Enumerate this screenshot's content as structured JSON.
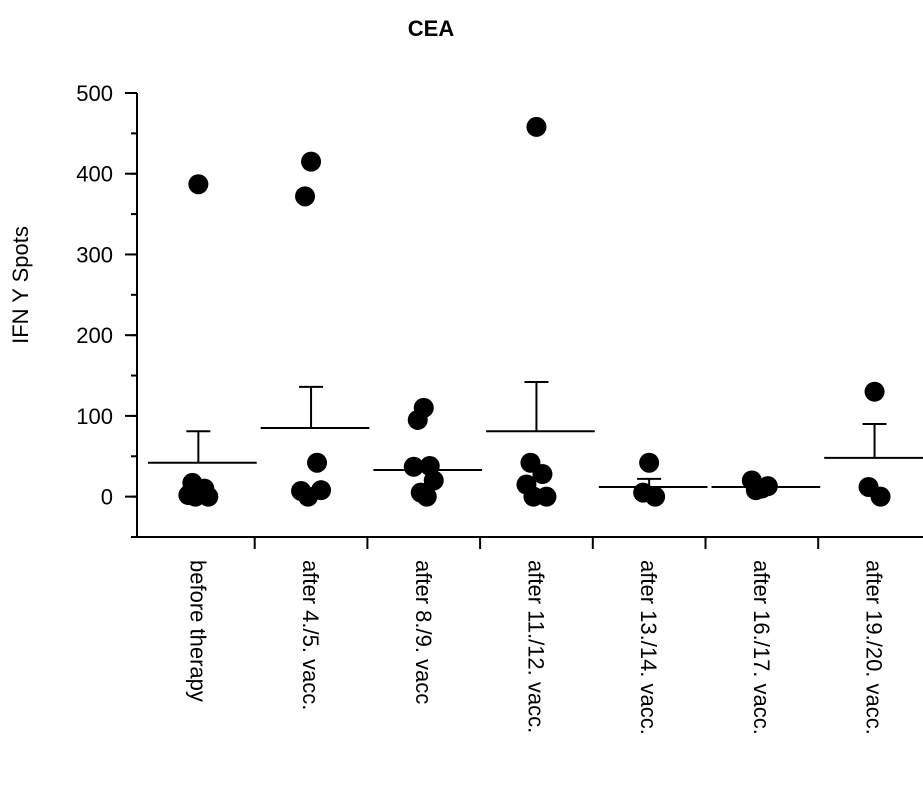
{
  "chart_data": {
    "type": "dot",
    "title": "CEA",
    "y_label": "IFN Y Spots",
    "categories": [
      "before therapy",
      "after 4./5. vacc.",
      "after 8./9. vacc",
      "after 11./12. vacc.",
      "after 13./14. vacc.",
      "after 16./17. vacc.",
      "after 19./20. vacc."
    ],
    "values": [
      [
        387,
        17,
        10,
        2,
        0,
        0
      ],
      [
        415,
        372,
        42,
        7,
        8,
        0
      ],
      [
        110,
        95,
        38,
        37,
        20,
        5,
        0
      ],
      [
        458,
        42,
        28,
        15,
        0,
        0
      ],
      [
        42,
        5,
        0
      ],
      [
        10,
        8,
        13,
        20
      ],
      [
        130,
        12,
        0
      ]
    ],
    "means": [
      42,
      85,
      33,
      81,
      12,
      12,
      48
    ],
    "errors": [
      39,
      51,
      null,
      61,
      10,
      null,
      42
    ],
    "color": "#000000",
    "ylim": [
      -50,
      500
    ],
    "yticks": [
      0,
      100,
      200,
      300,
      400,
      500
    ],
    "minor_step": 50
  }
}
